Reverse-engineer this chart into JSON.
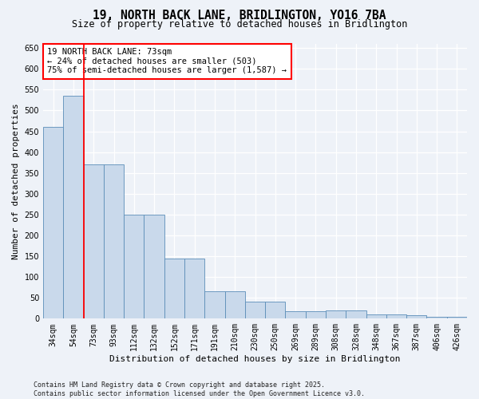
{
  "title": "19, NORTH BACK LANE, BRIDLINGTON, YO16 7BA",
  "subtitle": "Size of property relative to detached houses in Bridlington",
  "xlabel": "Distribution of detached houses by size in Bridlington",
  "ylabel": "Number of detached properties",
  "categories": [
    "34sqm",
    "54sqm",
    "73sqm",
    "93sqm",
    "112sqm",
    "132sqm",
    "152sqm",
    "171sqm",
    "191sqm",
    "210sqm",
    "230sqm",
    "250sqm",
    "269sqm",
    "289sqm",
    "308sqm",
    "328sqm",
    "348sqm",
    "367sqm",
    "387sqm",
    "406sqm",
    "426sqm"
  ],
  "values": [
    460,
    535,
    370,
    370,
    250,
    250,
    145,
    145,
    65,
    65,
    40,
    40,
    18,
    18,
    20,
    20,
    10,
    10,
    8,
    5,
    5
  ],
  "bar_color": "#c9d9eb",
  "bar_edge_color": "#5b8db8",
  "redline_index": 2,
  "annotation_line1": "19 NORTH BACK LANE: 73sqm",
  "annotation_line2": "← 24% of detached houses are smaller (503)",
  "annotation_line3": "75% of semi-detached houses are larger (1,587) →",
  "annotation_box_color": "white",
  "annotation_box_edge": "red",
  "footer": "Contains HM Land Registry data © Crown copyright and database right 2025.\nContains public sector information licensed under the Open Government Licence v3.0.",
  "ylim": [
    0,
    660
  ],
  "yticks": [
    0,
    50,
    100,
    150,
    200,
    250,
    300,
    350,
    400,
    450,
    500,
    550,
    600,
    650
  ],
  "bg_color": "#eef2f8",
  "grid_color": "#ffffff",
  "title_fontsize": 10.5,
  "subtitle_fontsize": 8.5,
  "ylabel_fontsize": 8,
  "xlabel_fontsize": 8,
  "tick_fontsize": 7,
  "annotation_fontsize": 7.5,
  "footer_fontsize": 6
}
